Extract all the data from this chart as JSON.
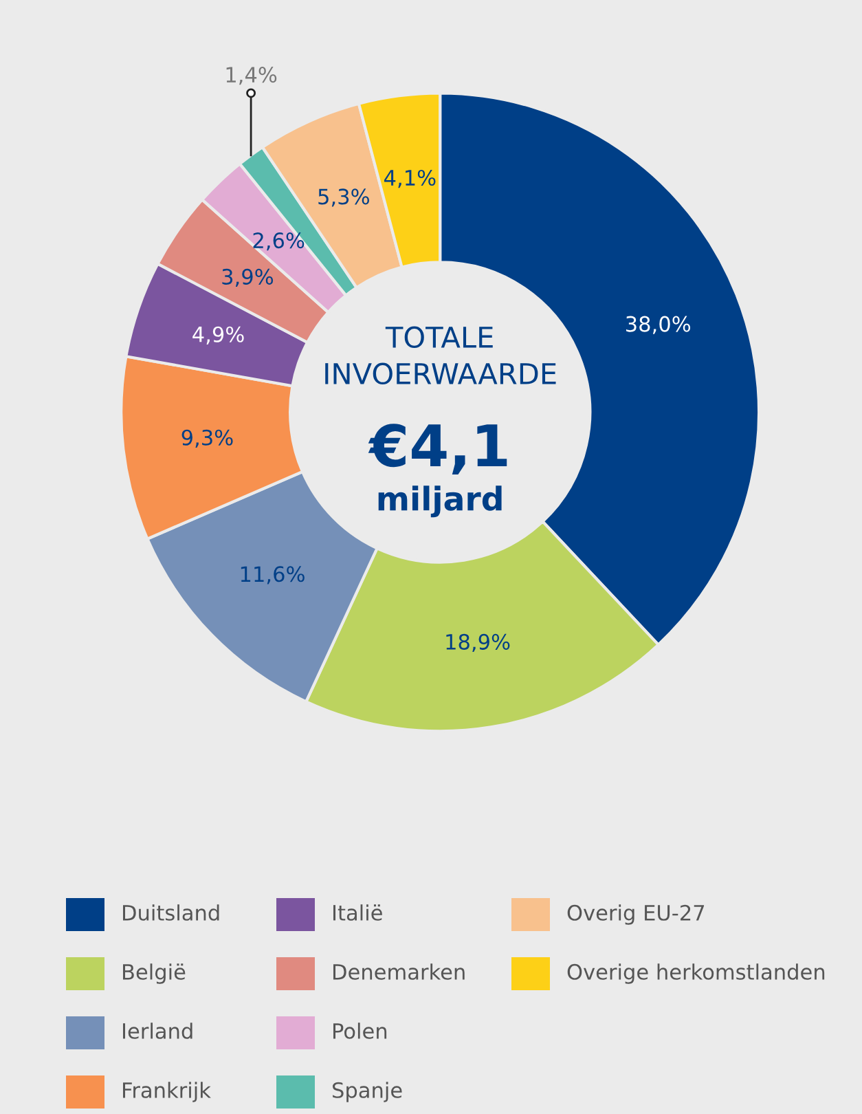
{
  "chart_data": {
    "type": "donut",
    "title": "TOTALE\nINVOERWAARDE",
    "annotations": [
      "€4,1",
      "miljard"
    ],
    "categories": [
      "Duitsland",
      "België",
      "Ierland",
      "Frankrijk",
      "Italië",
      "Denemarken",
      "Polen",
      "Spanje",
      "Overig EU-27",
      "Overige herkomstlanden"
    ],
    "values": [
      38.0,
      18.9,
      11.6,
      9.3,
      4.9,
      3.9,
      2.6,
      1.4,
      5.3,
      4.1
    ],
    "value_labels": [
      "38,0%",
      "18,9%",
      "11,6%",
      "9,3%",
      "4,9%",
      "3,9%",
      "2,6%",
      "1,4%",
      "5,3%",
      "4,1%"
    ],
    "colors": [
      "#003f87",
      "#bcd35f",
      "#7590b8",
      "#f7914f",
      "#7b559f",
      "#e08a80",
      "#e2acd4",
      "#5bbcad",
      "#f8c18d",
      "#fdd017"
    ],
    "legend": "bottom"
  }
}
